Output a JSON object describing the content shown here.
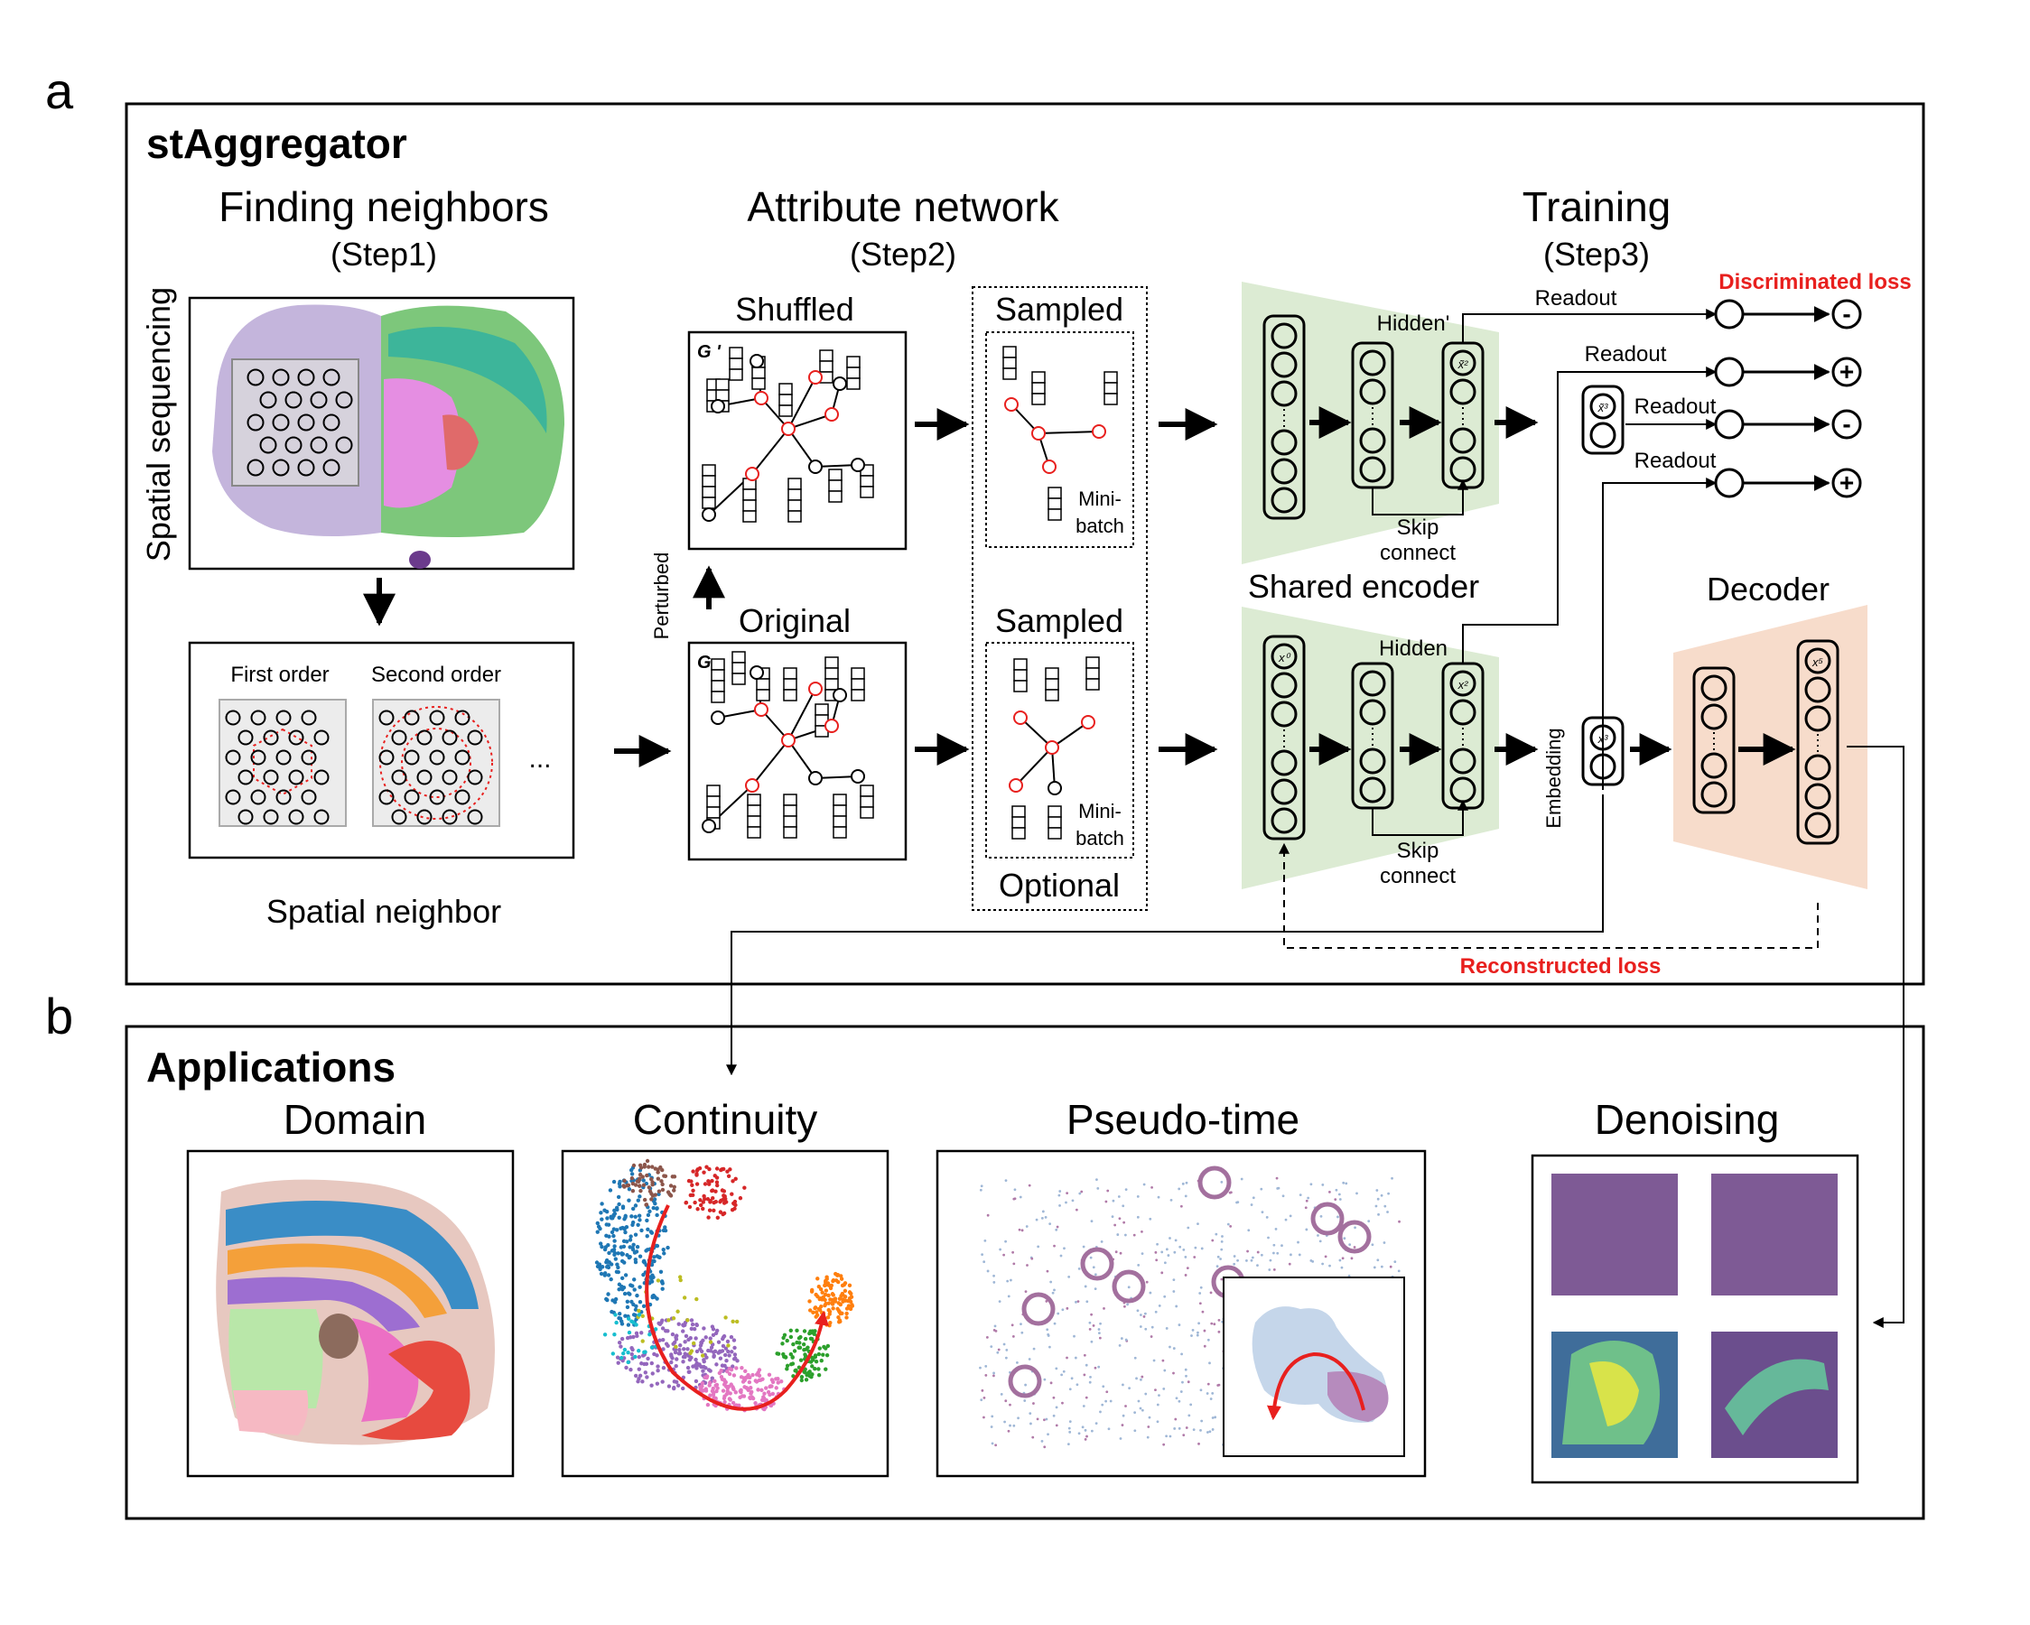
{
  "panel_a": {
    "letter": "a",
    "title": "stAggregator",
    "step1": {
      "title": "Finding neighbors",
      "sub": "(Step1)",
      "side_label": "Spatial sequencing",
      "first_order": "First order",
      "second_order": "Second order",
      "ellipsis": "...",
      "caption": "Spatial neighbor"
    },
    "step2": {
      "title": "Attribute network",
      "sub": "(Step2)",
      "shuffled": "Shuffled",
      "original": "Original",
      "perturbed": "Perturbed",
      "g_prime": "G '",
      "g": "G",
      "sampled": "Sampled",
      "mini": "Mini-",
      "batch": "batch",
      "optional": "Optional"
    },
    "step3": {
      "title": "Training",
      "sub": "(Step3)",
      "hidden_prime": "Hidden'",
      "hidden": "Hidden",
      "skip": "Skip",
      "connect": "connect",
      "shared_encoder": "Shared encoder",
      "decoder": "Decoder",
      "embedding": "Embedding",
      "readout": "Readout",
      "discriminated_loss": "Discriminated loss",
      "reconstructed_loss": "Reconstructed loss",
      "x0": "x⁰",
      "x2": "x²",
      "x2p": "x̃²",
      "x3": "x³",
      "x3p": "x̃³",
      "x5": "x⁵",
      "plus": "+",
      "minus": "-"
    }
  },
  "panel_b": {
    "letter": "b",
    "title": "Applications",
    "items": [
      "Domain",
      "Continuity",
      "Pseudo-time",
      "Denoising"
    ]
  },
  "colors": {
    "encoder": "#dcebd3",
    "decoder": "#f7dccb",
    "red": "#e8201e",
    "brain_left": "#b5a3d3",
    "brain_green": "#7dc77b",
    "brain_pink": "#e58ee2"
  }
}
